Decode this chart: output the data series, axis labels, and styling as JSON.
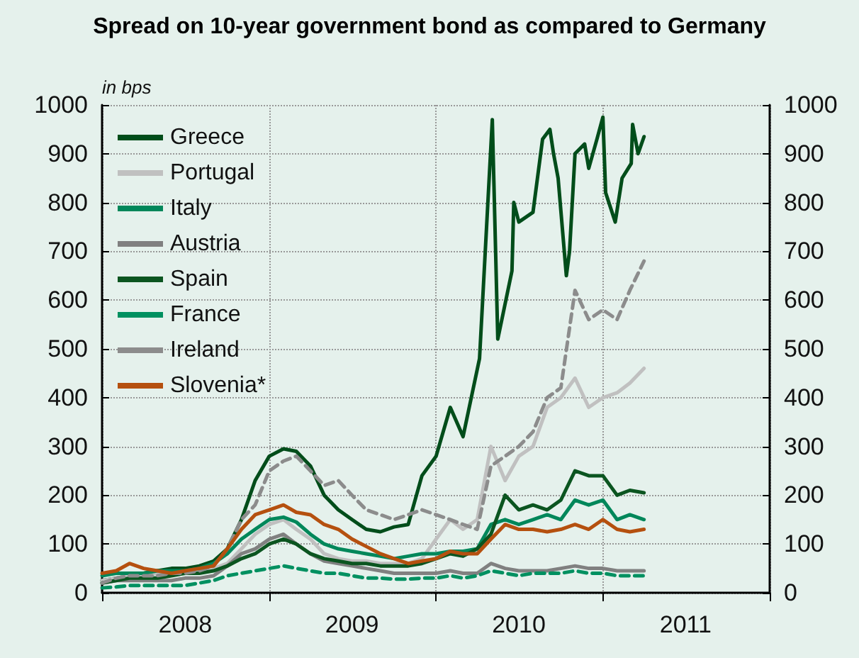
{
  "chart_data": {
    "type": "line",
    "title": "Spread on 10-year government bond as compared to Germany",
    "ylabel": "in bps",
    "x": [
      "2008-01",
      "2008-02",
      "2008-03",
      "2008-04",
      "2008-05",
      "2008-06",
      "2008-07",
      "2008-08",
      "2008-09",
      "2008-10",
      "2008-11",
      "2008-12",
      "2009-01",
      "2009-02",
      "2009-03",
      "2009-04",
      "2009-05",
      "2009-06",
      "2009-07",
      "2009-08",
      "2009-09",
      "2009-10",
      "2009-11",
      "2009-12",
      "2010-01",
      "2010-02",
      "2010-03",
      "2010-04",
      "2010-05",
      "2010-06",
      "2010-07",
      "2010-08",
      "2010-09",
      "2010-10",
      "2010-11",
      "2010-12",
      "2011-01",
      "2011-02",
      "2011-03",
      "2011-04"
    ],
    "series": [
      {
        "name": "Greece",
        "color": "#004d1a",
        "line_style": "solid",
        "x": [
          "2008-01",
          "2008-02",
          "2008-03",
          "2008-04",
          "2008-05",
          "2008-06",
          "2008-07",
          "2008-08",
          "2008-09",
          "2008-10",
          "2008-11",
          "2008-12",
          "2009-01",
          "2009-02",
          "2009-03",
          "2009-04",
          "2009-05",
          "2009-06",
          "2009-07",
          "2009-08",
          "2009-09",
          "2009-10",
          "2009-11",
          "2009-12",
          "2010-01",
          "2010-02",
          "2010-03",
          "2010-04-06",
          "2010-04-18",
          "2010-05-04",
          "2010-05-16",
          "2010-06-16",
          "2010-06-20",
          "2010-07-01",
          "2010-08-01",
          "2010-08-22",
          "2010-09-07",
          "2010-09-15",
          "2010-09-25",
          "2010-10-13",
          "2010-10-20",
          "2010-11-01",
          "2010-11-22",
          "2010-12-01",
          "2010-12-19",
          "2011-01-01",
          "2011-01-07",
          "2011-01-28",
          "2011-02-12",
          "2011-03-04",
          "2011-03-07",
          "2011-03-19",
          "2011-04-01"
        ],
        "values": [
          25,
          30,
          35,
          40,
          45,
          50,
          50,
          55,
          65,
          90,
          150,
          230,
          280,
          295,
          290,
          260,
          200,
          170,
          150,
          130,
          125,
          135,
          140,
          240,
          280,
          380,
          320,
          480,
          690,
          970,
          520,
          660,
          800,
          760,
          780,
          930,
          950,
          900,
          850,
          650,
          700,
          900,
          920,
          870,
          930,
          975,
          820,
          760,
          850,
          880,
          960,
          900,
          935
        ]
      },
      {
        "name": "Portugal",
        "color": "#c0c0c0",
        "line_style": "solid",
        "values": [
          25,
          30,
          35,
          35,
          40,
          40,
          40,
          45,
          50,
          60,
          90,
          120,
          140,
          150,
          130,
          110,
          80,
          70,
          65,
          65,
          60,
          60,
          60,
          70,
          110,
          150,
          130,
          150,
          300,
          230,
          280,
          300,
          380,
          400,
          440,
          380,
          400,
          410,
          430,
          460
        ]
      },
      {
        "name": "Italy",
        "color": "#00875a",
        "line_style": "solid",
        "values": [
          35,
          40,
          40,
          40,
          45,
          45,
          45,
          50,
          60,
          80,
          110,
          130,
          150,
          155,
          145,
          120,
          100,
          90,
          85,
          80,
          75,
          70,
          75,
          80,
          80,
          85,
          85,
          90,
          140,
          150,
          140,
          150,
          160,
          150,
          190,
          180,
          190,
          150,
          160,
          150
        ]
      },
      {
        "name": "Austria",
        "color": "#808080",
        "line_style": "solid",
        "values": [
          20,
          25,
          25,
          25,
          25,
          25,
          30,
          30,
          35,
          55,
          80,
          90,
          110,
          120,
          100,
          80,
          65,
          60,
          55,
          50,
          45,
          40,
          40,
          40,
          40,
          45,
          40,
          40,
          60,
          50,
          45,
          45,
          45,
          50,
          55,
          50,
          50,
          45,
          45,
          45
        ]
      },
      {
        "name": "Spain",
        "color": "#0b5520",
        "line_style": "solid",
        "values": [
          20,
          25,
          30,
          30,
          30,
          35,
          40,
          40,
          45,
          55,
          70,
          80,
          100,
          110,
          100,
          80,
          70,
          65,
          60,
          60,
          55,
          55,
          55,
          60,
          70,
          80,
          75,
          90,
          120,
          200,
          170,
          180,
          170,
          190,
          250,
          240,
          240,
          200,
          210,
          205
        ]
      },
      {
        "name": "France",
        "color": "#009060",
        "line_style": "dashed",
        "values": [
          10,
          12,
          15,
          15,
          15,
          15,
          15,
          20,
          25,
          35,
          40,
          45,
          50,
          55,
          50,
          45,
          40,
          40,
          35,
          30,
          30,
          28,
          28,
          30,
          30,
          35,
          30,
          35,
          45,
          40,
          35,
          40,
          40,
          40,
          45,
          40,
          40,
          35,
          35,
          35
        ]
      },
      {
        "name": "Ireland",
        "color": "#8c8c8c",
        "line_style": "dashed",
        "values": [
          20,
          30,
          35,
          35,
          35,
          40,
          40,
          45,
          55,
          90,
          150,
          180,
          250,
          270,
          280,
          250,
          220,
          230,
          200,
          170,
          160,
          150,
          160,
          170,
          160,
          150,
          140,
          130,
          260,
          280,
          300,
          330,
          400,
          420,
          620,
          560,
          580,
          560,
          620,
          680
        ]
      },
      {
        "name": "Slovenia*",
        "color": "#b5500f",
        "line_style": "solid",
        "values": [
          40,
          45,
          60,
          50,
          45,
          40,
          45,
          50,
          55,
          90,
          130,
          160,
          170,
          180,
          165,
          160,
          140,
          130,
          110,
          95,
          80,
          70,
          60,
          65,
          70,
          85,
          80,
          80,
          110,
          140,
          130,
          130,
          125,
          130,
          140,
          130,
          150,
          130,
          125,
          130
        ]
      }
    ],
    "xlim": [
      "2008-01-01",
      "2012-01-01"
    ],
    "xticks": [
      {
        "value": "2008-01-01",
        "label": null
      },
      {
        "value": "2008-07-01",
        "label": "2008"
      },
      {
        "value": "2009-01-01",
        "label": null
      },
      {
        "value": "2009-07-01",
        "label": "2009"
      },
      {
        "value": "2010-01-01",
        "label": null
      },
      {
        "value": "2010-07-01",
        "label": "2010"
      },
      {
        "value": "2011-01-01",
        "label": null
      },
      {
        "value": "2011-07-01",
        "label": "2011"
      },
      {
        "value": "2012-01-01",
        "label": null
      }
    ],
    "ylim": [
      0,
      1000
    ],
    "yticks": [
      0,
      100,
      200,
      300,
      400,
      500,
      600,
      700,
      800,
      900,
      1000
    ],
    "y2lim": [
      0,
      1000
    ],
    "y2ticks": [
      0,
      100,
      200,
      300,
      400,
      500,
      600,
      700,
      800,
      900,
      1000
    ],
    "grid": true,
    "legend": "top left",
    "marker": "none"
  }
}
